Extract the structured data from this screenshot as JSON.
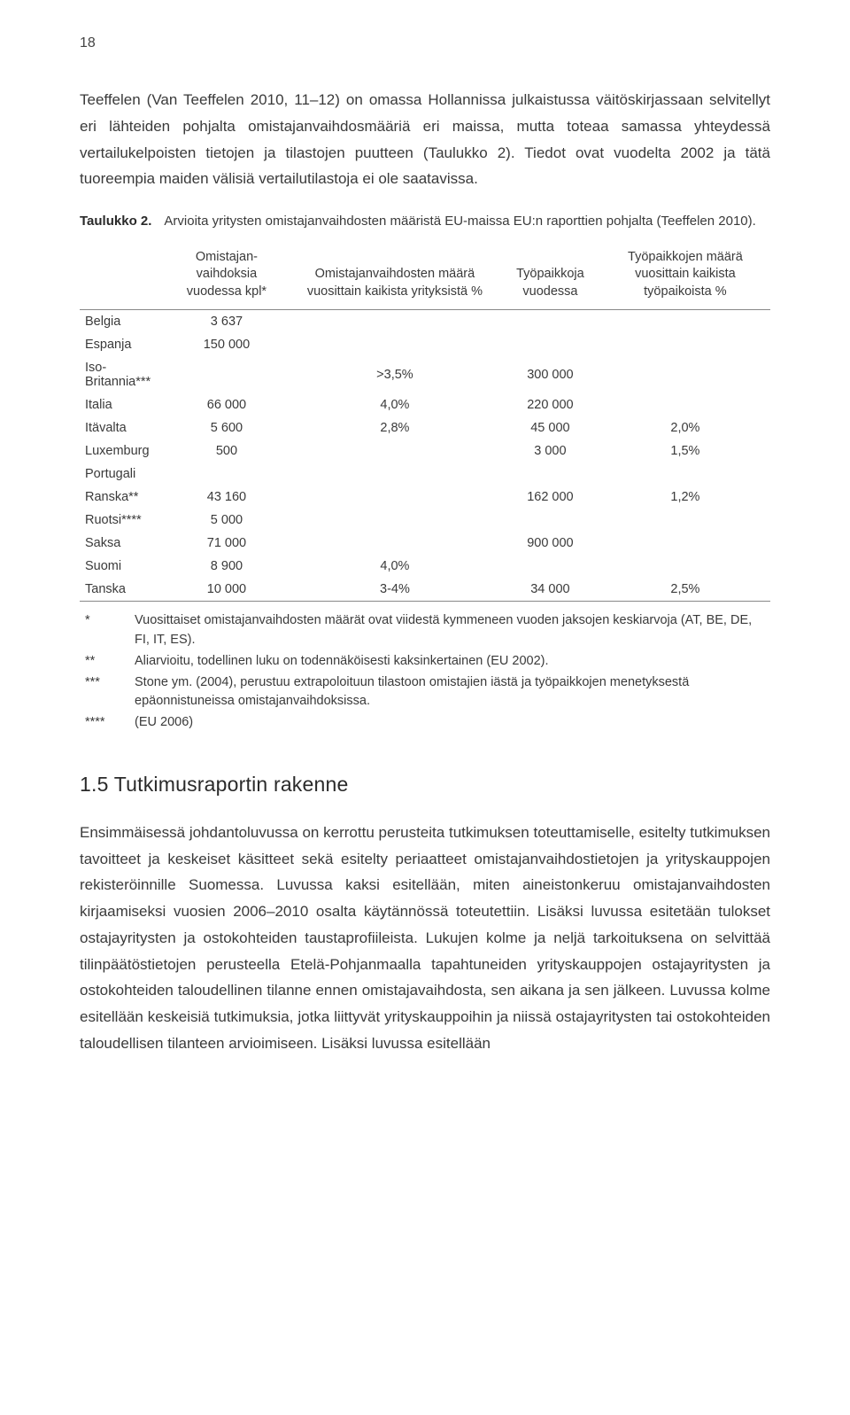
{
  "page_number": "18",
  "paragraphs": {
    "p1": "Teeffelen (Van Teeffelen 2010, 11–12) on omassa Hollannissa julkaistussa väitöskirjassaan selvitellyt eri lähteiden pohjalta omistajanvaihdosmääriä eri maissa, mutta toteaa samassa yhteydessä vertailukelpoisten tietojen ja tilastojen puutteen (Taulukko 2). Tiedot ovat vuodelta 2002 ja tätä tuoreempia maiden välisiä vertailutilastoja ei ole saatavissa.",
    "p2": "Ensimmäisessä johdantoluvussa on kerrottu perusteita tutkimuksen toteuttamiselle, esitelty tutkimuksen tavoitteet ja keskeiset käsitteet sekä esitelty periaatteet omistajanvaihdostietojen ja yrityskauppojen rekisteröinnille Suomessa. Luvussa kaksi esitellään, miten aineistonkeruu omistajanvaihdosten kirjaamiseksi vuosien 2006–2010 osalta käytännössä toteutettiin. Lisäksi luvussa esitetään tulokset ostajayritysten ja ostokohteiden taustaprofiileista. Lukujen kolme ja neljä tarkoituksena on selvittää tilinpäätöstietojen perusteella Etelä-Pohjanmaalla tapahtuneiden yrityskauppojen ostajayritysten ja ostokohteiden taloudellinen tilanne ennen omistajavaihdosta, sen aikana ja sen jälkeen. Luvussa kolme esitellään keskeisiä tutkimuksia, jotka liittyvät yrityskauppoihin ja niissä ostajayritysten tai ostokohteiden taloudellisen tilanteen arvioimiseen. Lisäksi luvussa esitellään"
  },
  "taulukko": {
    "label": "Taulukko 2.",
    "caption": "Arvioita yritysten omistajanvaihdosten määristä EU-maissa EU:n raporttien pohjalta (Teeffelen 2010)."
  },
  "table": {
    "headers": {
      "c0": "",
      "c1": "Omistajan-vaihdoksia vuodessa kpl*",
      "c2": "Omistajanvaihdosten määrä vuosittain kaikista yrityksistä %",
      "c3": "Työpaikkoja vuodessa",
      "c4": "Työpaikkojen määrä vuosittain kaikista työpaikoista %"
    },
    "rows": [
      {
        "c0": "Belgia",
        "c1": "3 637",
        "c2": "",
        "c3": "",
        "c4": ""
      },
      {
        "c0": "Espanja",
        "c1": "150 000",
        "c2": "",
        "c3": "",
        "c4": ""
      },
      {
        "c0": "Iso-Britannia***",
        "c1": "",
        "c2": ">3,5%",
        "c3": "300 000",
        "c4": ""
      },
      {
        "c0": "Italia",
        "c1": "66 000",
        "c2": "4,0%",
        "c3": "220 000",
        "c4": ""
      },
      {
        "c0": "Itävalta",
        "c1": "5 600",
        "c2": "2,8%",
        "c3": "45 000",
        "c4": "2,0%"
      },
      {
        "c0": "Luxemburg",
        "c1": "500",
        "c2": "",
        "c3": "3 000",
        "c4": "1,5%"
      },
      {
        "c0": "Portugali",
        "c1": "",
        "c2": "",
        "c3": "",
        "c4": ""
      },
      {
        "c0": "Ranska**",
        "c1": "43 160",
        "c2": "",
        "c3": "162 000",
        "c4": "1,2%"
      },
      {
        "c0": "Ruotsi****",
        "c1": "5 000",
        "c2": "",
        "c3": "",
        "c4": ""
      },
      {
        "c0": "Saksa",
        "c1": "71 000",
        "c2": "",
        "c3": "900 000",
        "c4": ""
      },
      {
        "c0": "Suomi",
        "c1": "8 900",
        "c2": "4,0%",
        "c3": "",
        "c4": ""
      },
      {
        "c0": "Tanska",
        "c1": "10 000",
        "c2": "3-4%",
        "c3": "34 000",
        "c4": "2,5%"
      }
    ]
  },
  "footnotes": [
    {
      "sym": "*",
      "text": "Vuosittaiset omistajanvaihdosten määrät ovat viidestä kymmeneen vuoden jaksojen keskiarvoja (AT, BE, DE, FI, IT, ES)."
    },
    {
      "sym": "**",
      "text": "Aliarvioitu, todellinen luku on todennäköisesti kaksinkertainen (EU 2002)."
    },
    {
      "sym": "***",
      "text": "Stone ym. (2004), perustuu extrapoloituun tilastoon omistajien iästä ja työpaikkojen menetyksestä epäonnistuneissa omistajanvaihdoksissa."
    },
    {
      "sym": "****",
      "text": "(EU 2006)"
    }
  ],
  "section_heading": "1.5 Tutkimusraportin rakenne"
}
